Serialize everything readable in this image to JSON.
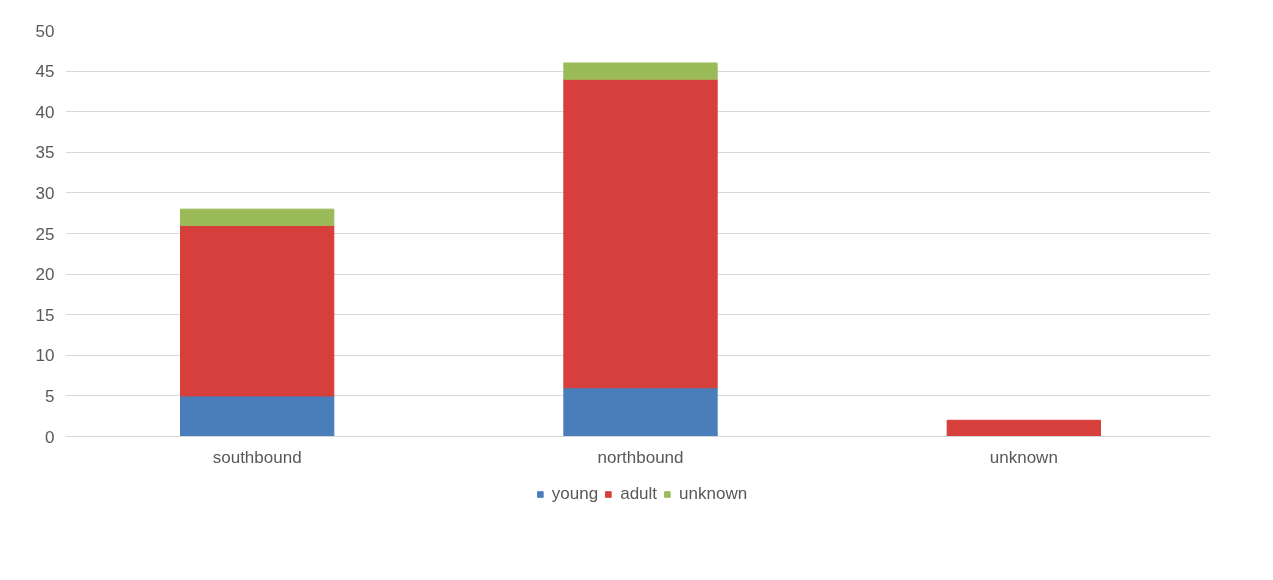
{
  "chart_data": {
    "type": "bar",
    "stacked": true,
    "categories": [
      "southbound",
      "northbound",
      "unknown"
    ],
    "series": [
      {
        "name": "young",
        "color": "#4a7ebb",
        "values": [
          5,
          6,
          null
        ]
      },
      {
        "name": "adult",
        "color": "#d63f3b",
        "values": [
          21,
          38,
          2
        ]
      },
      {
        "name": "unknown",
        "color": "#9bbb59",
        "values": [
          2,
          2,
          null
        ]
      }
    ],
    "ylim": [
      0,
      50
    ],
    "yticks": [
      0,
      5,
      10,
      15,
      20,
      25,
      30,
      35,
      40,
      45,
      50
    ],
    "grid": "y",
    "legend": "bottom"
  }
}
